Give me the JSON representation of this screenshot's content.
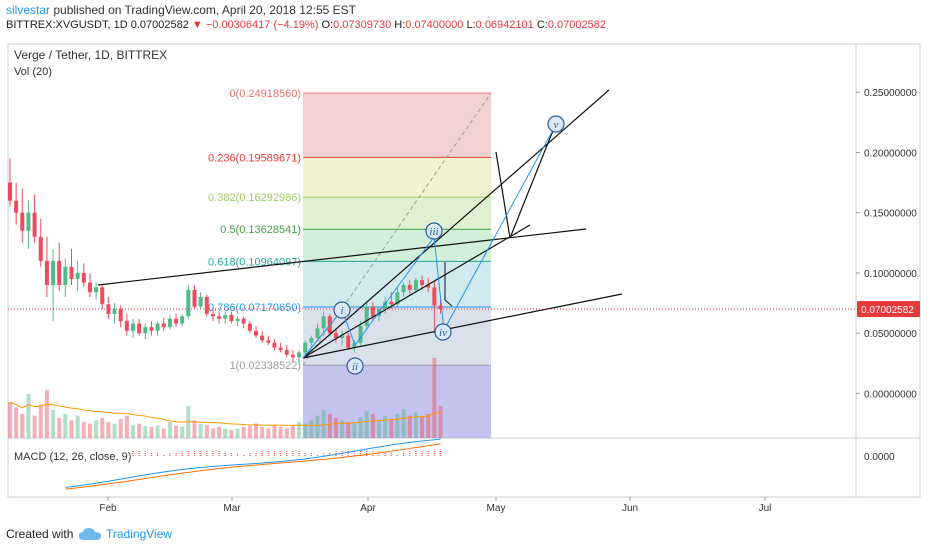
{
  "header": {
    "user": "silvestar",
    "published": "published on TradingView.com, April 20, 2018 12:55 EST",
    "symbol": "BITTREX:XVGUSDT, 1D",
    "last": "0.07002582",
    "down_arrow": "▼",
    "change": "−0.00306417 (−4.19%)",
    "o_label": "O:",
    "o_value": "0.07309730",
    "h_label": "H:",
    "h_value": "0.07400000",
    "l_label": "L:",
    "l_value": "0.06942101",
    "c_label": "C:",
    "c_value": "0.07002582"
  },
  "legend": {
    "title": "Verge / Tether, 1D, BITTREX",
    "volume": "Vol (20)",
    "macd": "MACD (12, 26, close, 9)"
  },
  "footer": {
    "made": "Created with",
    "brand": "TradingView"
  },
  "colors": {
    "up": "#53b987",
    "down": "#eb4d5c",
    "macd_line": "#2196f3",
    "signal_line": "#ff6d00",
    "fib_border": "#b0b0b0",
    "axis_text": "#333333",
    "price_tag": "#e5393c"
  },
  "chart_data": {
    "type": "candlestick",
    "title": "Verge / Tether, 1D, BITTREX",
    "x_tick_labels": [
      "Feb",
      "Mar",
      "Apr",
      "May",
      "Jun",
      "Jul"
    ],
    "y_tick_labels": [
      "0.25000000",
      "0.20000000",
      "0.15000000",
      "0.10000000",
      "0.05000000",
      "0.00000000"
    ],
    "y_ticks": [
      0.25,
      0.2,
      0.15,
      0.1,
      0.05,
      0.0
    ],
    "ylim": [
      -0.037,
      0.29
    ],
    "last_price_label": "0.07002582",
    "last_price": 0.07002582,
    "macd_tick_label": "0.0000",
    "fibonacci": [
      {
        "label": "0(0.24918560)",
        "value": 0.2491856,
        "color": "#e57373"
      },
      {
        "label": "0.236(0.19589671)",
        "value": 0.19589671,
        "color": "#e53935"
      },
      {
        "label": "0.382(0.16292986)",
        "value": 0.16292986,
        "color": "#9ccc65"
      },
      {
        "label": "0.5(0.13628541)",
        "value": 0.13628541,
        "color": "#43a047"
      },
      {
        "label": "0.618(0.10964097)",
        "value": 0.10964097,
        "color": "#26a69a"
      },
      {
        "label": "0.786(0.07170650)",
        "value": 0.0717065,
        "color": "#2196f3"
      },
      {
        "label": "1(0.02338522)",
        "value": 0.02338522,
        "color": "#9e9e9e"
      }
    ],
    "wave_labels": [
      "i",
      "ii",
      "iii",
      "iv",
      "v"
    ],
    "candles": [
      {
        "o": 0.175,
        "h": 0.195,
        "l": 0.155,
        "c": 0.16
      },
      {
        "o": 0.16,
        "h": 0.175,
        "l": 0.14,
        "c": 0.15
      },
      {
        "o": 0.15,
        "h": 0.17,
        "l": 0.125,
        "c": 0.135
      },
      {
        "o": 0.135,
        "h": 0.16,
        "l": 0.12,
        "c": 0.15
      },
      {
        "o": 0.15,
        "h": 0.165,
        "l": 0.125,
        "c": 0.13
      },
      {
        "o": 0.13,
        "h": 0.145,
        "l": 0.105,
        "c": 0.11
      },
      {
        "o": 0.11,
        "h": 0.13,
        "l": 0.08,
        "c": 0.09
      },
      {
        "o": 0.09,
        "h": 0.12,
        "l": 0.06,
        "c": 0.11
      },
      {
        "o": 0.11,
        "h": 0.125,
        "l": 0.085,
        "c": 0.09
      },
      {
        "o": 0.09,
        "h": 0.112,
        "l": 0.08,
        "c": 0.105
      },
      {
        "o": 0.105,
        "h": 0.12,
        "l": 0.09,
        "c": 0.095
      },
      {
        "o": 0.095,
        "h": 0.11,
        "l": 0.085,
        "c": 0.1
      },
      {
        "o": 0.1,
        "h": 0.108,
        "l": 0.088,
        "c": 0.092
      },
      {
        "o": 0.092,
        "h": 0.1,
        "l": 0.08,
        "c": 0.084
      },
      {
        "o": 0.084,
        "h": 0.092,
        "l": 0.078,
        "c": 0.088
      },
      {
        "o": 0.088,
        "h": 0.09,
        "l": 0.07,
        "c": 0.074
      },
      {
        "o": 0.074,
        "h": 0.08,
        "l": 0.062,
        "c": 0.066
      },
      {
        "o": 0.066,
        "h": 0.075,
        "l": 0.058,
        "c": 0.07
      },
      {
        "o": 0.07,
        "h": 0.073,
        "l": 0.055,
        "c": 0.06
      },
      {
        "o": 0.06,
        "h": 0.066,
        "l": 0.048,
        "c": 0.052
      },
      {
        "o": 0.052,
        "h": 0.062,
        "l": 0.046,
        "c": 0.058
      },
      {
        "o": 0.058,
        "h": 0.062,
        "l": 0.048,
        "c": 0.05
      },
      {
        "o": 0.05,
        "h": 0.058,
        "l": 0.045,
        "c": 0.055
      },
      {
        "o": 0.055,
        "h": 0.06,
        "l": 0.048,
        "c": 0.052
      },
      {
        "o": 0.052,
        "h": 0.06,
        "l": 0.048,
        "c": 0.058
      },
      {
        "o": 0.058,
        "h": 0.063,
        "l": 0.052,
        "c": 0.055
      },
      {
        "o": 0.055,
        "h": 0.065,
        "l": 0.053,
        "c": 0.062
      },
      {
        "o": 0.062,
        "h": 0.066,
        "l": 0.055,
        "c": 0.058
      },
      {
        "o": 0.058,
        "h": 0.066,
        "l": 0.056,
        "c": 0.064
      },
      {
        "o": 0.064,
        "h": 0.09,
        "l": 0.062,
        "c": 0.086
      },
      {
        "o": 0.086,
        "h": 0.09,
        "l": 0.07,
        "c": 0.072
      },
      {
        "o": 0.072,
        "h": 0.084,
        "l": 0.07,
        "c": 0.08
      },
      {
        "o": 0.08,
        "h": 0.082,
        "l": 0.064,
        "c": 0.066
      },
      {
        "o": 0.066,
        "h": 0.07,
        "l": 0.06,
        "c": 0.064
      },
      {
        "o": 0.064,
        "h": 0.068,
        "l": 0.058,
        "c": 0.062
      },
      {
        "o": 0.062,
        "h": 0.068,
        "l": 0.058,
        "c": 0.065
      },
      {
        "o": 0.065,
        "h": 0.068,
        "l": 0.058,
        "c": 0.06
      },
      {
        "o": 0.06,
        "h": 0.064,
        "l": 0.056,
        "c": 0.062
      },
      {
        "o": 0.062,
        "h": 0.064,
        "l": 0.054,
        "c": 0.058
      },
      {
        "o": 0.058,
        "h": 0.06,
        "l": 0.05,
        "c": 0.052
      },
      {
        "o": 0.052,
        "h": 0.056,
        "l": 0.046,
        "c": 0.048
      },
      {
        "o": 0.048,
        "h": 0.052,
        "l": 0.042,
        "c": 0.044
      },
      {
        "o": 0.044,
        "h": 0.048,
        "l": 0.04,
        "c": 0.042
      },
      {
        "o": 0.042,
        "h": 0.045,
        "l": 0.036,
        "c": 0.038
      },
      {
        "o": 0.038,
        "h": 0.042,
        "l": 0.034,
        "c": 0.036
      },
      {
        "o": 0.036,
        "h": 0.04,
        "l": 0.03,
        "c": 0.032
      },
      {
        "o": 0.032,
        "h": 0.036,
        "l": 0.026,
        "c": 0.03
      },
      {
        "o": 0.03,
        "h": 0.036,
        "l": 0.024,
        "c": 0.034
      },
      {
        "o": 0.034,
        "h": 0.044,
        "l": 0.032,
        "c": 0.042
      },
      {
        "o": 0.042,
        "h": 0.048,
        "l": 0.038,
        "c": 0.046
      },
      {
        "o": 0.046,
        "h": 0.058,
        "l": 0.044,
        "c": 0.054
      },
      {
        "o": 0.054,
        "h": 0.068,
        "l": 0.05,
        "c": 0.064
      },
      {
        "o": 0.064,
        "h": 0.066,
        "l": 0.048,
        "c": 0.05
      },
      {
        "o": 0.05,
        "h": 0.054,
        "l": 0.042,
        "c": 0.046
      },
      {
        "o": 0.046,
        "h": 0.052,
        "l": 0.04,
        "c": 0.048
      },
      {
        "o": 0.048,
        "h": 0.05,
        "l": 0.036,
        "c": 0.038
      },
      {
        "o": 0.038,
        "h": 0.044,
        "l": 0.034,
        "c": 0.042
      },
      {
        "o": 0.042,
        "h": 0.06,
        "l": 0.04,
        "c": 0.056
      },
      {
        "o": 0.056,
        "h": 0.076,
        "l": 0.054,
        "c": 0.072
      },
      {
        "o": 0.072,
        "h": 0.076,
        "l": 0.06,
        "c": 0.064
      },
      {
        "o": 0.064,
        "h": 0.072,
        "l": 0.06,
        "c": 0.07
      },
      {
        "o": 0.07,
        "h": 0.08,
        "l": 0.066,
        "c": 0.076
      },
      {
        "o": 0.076,
        "h": 0.084,
        "l": 0.07,
        "c": 0.074
      },
      {
        "o": 0.074,
        "h": 0.088,
        "l": 0.072,
        "c": 0.084
      },
      {
        "o": 0.084,
        "h": 0.092,
        "l": 0.08,
        "c": 0.09
      },
      {
        "o": 0.09,
        "h": 0.094,
        "l": 0.082,
        "c": 0.086
      },
      {
        "o": 0.086,
        "h": 0.096,
        "l": 0.084,
        "c": 0.094
      },
      {
        "o": 0.094,
        "h": 0.098,
        "l": 0.086,
        "c": 0.09
      },
      {
        "o": 0.09,
        "h": 0.096,
        "l": 0.084,
        "c": 0.088
      },
      {
        "o": 0.088,
        "h": 0.094,
        "l": 0.05,
        "c": 0.073
      },
      {
        "o": 0.073,
        "h": 0.078,
        "l": 0.066,
        "c": 0.07
      }
    ],
    "volumes": [
      0.45,
      0.38,
      0.3,
      0.55,
      0.28,
      0.42,
      0.6,
      0.35,
      0.25,
      0.3,
      0.22,
      0.28,
      0.2,
      0.18,
      0.22,
      0.25,
      0.2,
      0.18,
      0.24,
      0.28,
      0.16,
      0.18,
      0.15,
      0.14,
      0.16,
      0.12,
      0.2,
      0.15,
      0.14,
      0.4,
      0.22,
      0.18,
      0.16,
      0.12,
      0.14,
      0.12,
      0.1,
      0.12,
      0.14,
      0.15,
      0.18,
      0.14,
      0.12,
      0.16,
      0.14,
      0.12,
      0.15,
      0.2,
      0.18,
      0.22,
      0.28,
      0.35,
      0.3,
      0.25,
      0.22,
      0.2,
      0.18,
      0.26,
      0.34,
      0.3,
      0.22,
      0.28,
      0.24,
      0.3,
      0.36,
      0.28,
      0.32,
      0.26,
      0.3,
      1.0,
      0.4
    ]
  }
}
